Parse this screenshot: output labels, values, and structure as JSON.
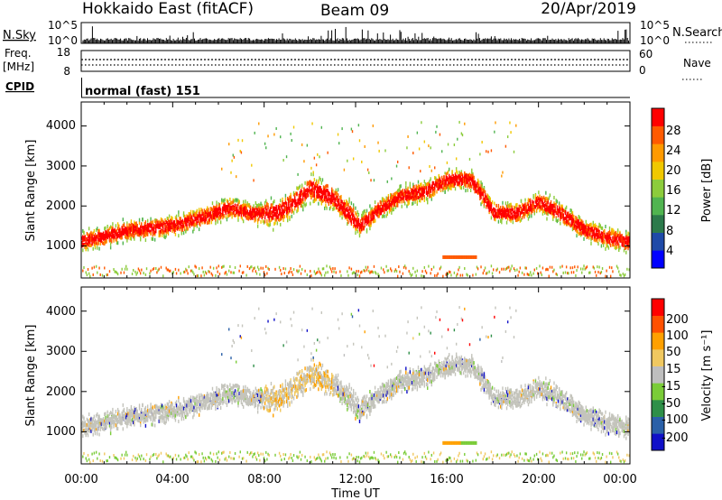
{
  "header": {
    "station": "Hokkaido East (fitACF)",
    "beam": "Beam 09",
    "date": "20/Apr/2019"
  },
  "strips": {
    "nsky_label": "N.Sky",
    "nsky_ticks": [
      "10^5",
      "10^0"
    ],
    "nsearch_label": "N.Search",
    "nsearch_ticks": [
      "10^5",
      "10^0"
    ],
    "freq_label": "Freq.",
    "freq_unit": "[MHz]",
    "freq_ticks": [
      "18",
      "8"
    ],
    "nave_label": "Nave",
    "nave_ticks": [
      "60",
      "0"
    ],
    "cpid_label": "CPID",
    "cpid_value": "normal (fast) 151"
  },
  "colors": {
    "power_scale": [
      "#0000ff",
      "#1f4aa8",
      "#2c7a4b",
      "#50b450",
      "#8ccc3c",
      "#f0c800",
      "#ff9a00",
      "#ff5a00",
      "#ff0000"
    ],
    "velocity_scale": [
      "#1010c8",
      "#2a60a8",
      "#2e8f48",
      "#7acc38",
      "#bebebe",
      "#f0c860",
      "#ffa000",
      "#ff5000",
      "#ff0000"
    ],
    "ground_scatter": "#c4c4bc"
  },
  "chart_data": [
    {
      "type": "heatmap",
      "panel": "power",
      "ylabel": "Slant Range [km]",
      "yticks": [
        "1000",
        "2000",
        "3000",
        "4000"
      ],
      "ylim": [
        200,
        4600
      ],
      "colorbar_label": "Power [dB]",
      "colorbar_ticks": [
        "28",
        "24",
        "20",
        "16",
        "12",
        "8",
        "4"
      ],
      "colorbar_range": [
        0,
        32
      ],
      "echo_band": {
        "time_hr": [
          0,
          2,
          4,
          5.5,
          6.5,
          7.5,
          8.7,
          9.3,
          10,
          11,
          12.2,
          13,
          14,
          15,
          16,
          17,
          17.5,
          18,
          19,
          20,
          21,
          22,
          23,
          24
        ],
        "center_km": [
          1100,
          1380,
          1500,
          1750,
          1950,
          1800,
          1850,
          2100,
          2450,
          2200,
          1500,
          1900,
          2250,
          2350,
          2650,
          2650,
          2300,
          1850,
          1800,
          2100,
          1800,
          1400,
          1200,
          1100
        ]
      }
    },
    {
      "type": "heatmap",
      "panel": "velocity",
      "xlabel": "Time UT",
      "xticks": [
        "00:00",
        "04:00",
        "08:00",
        "12:00",
        "16:00",
        "20:00",
        "00:00"
      ],
      "xlim_hr": [
        0,
        24
      ],
      "ylabel": "Slant Range [km]",
      "yticks": [
        "1000",
        "2000",
        "3000",
        "4000"
      ],
      "ylim": [
        200,
        4600
      ],
      "colorbar_label": "Velocity [m s⁻¹]",
      "colorbar_ticks": [
        "200",
        "100",
        "50",
        "15",
        "-15",
        "-50",
        "-100",
        "-200"
      ],
      "colorbar_range": [
        -250,
        250
      ]
    }
  ]
}
